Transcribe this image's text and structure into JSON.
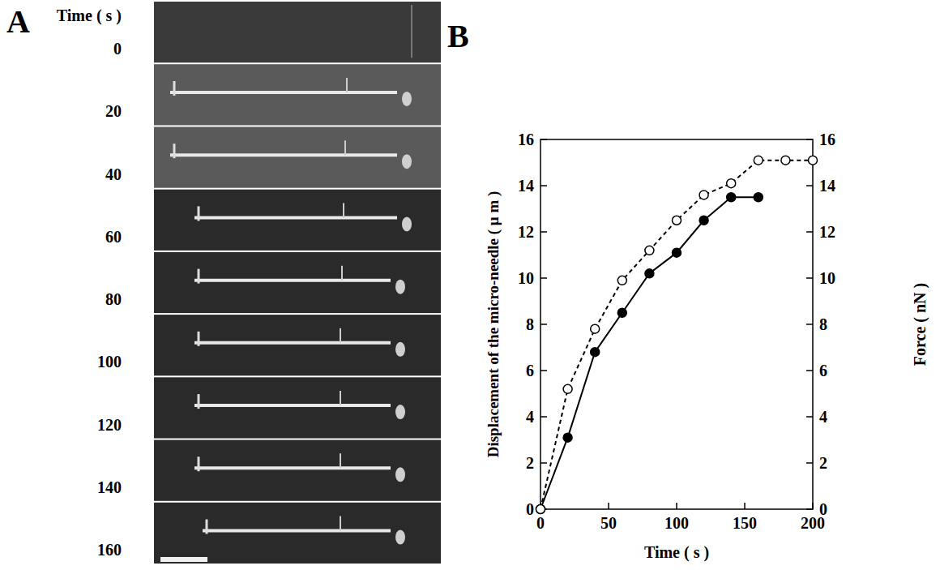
{
  "figure": {
    "panel_labels": [
      "A",
      "B"
    ]
  },
  "image_panel": {
    "header": "Time ( s )",
    "times": [
      0,
      20,
      40,
      60,
      80,
      100,
      120,
      140,
      160
    ]
  },
  "chart_data": {
    "type": "line",
    "x_label": "Time ( s )",
    "y_label": "Displacement of the micro-needle ( μ m )",
    "y2_label": "Force ( nN )",
    "xlim": [
      0,
      200
    ],
    "xticks": [
      0,
      50,
      100,
      150,
      200
    ],
    "ylim": [
      0,
      16
    ],
    "yticks": [
      0,
      2,
      4,
      6,
      8,
      10,
      12,
      14,
      16
    ],
    "y2lim": [
      0,
      16
    ],
    "y2ticks": [
      0,
      2,
      4,
      6,
      8,
      10,
      12,
      14,
      16
    ],
    "grid": false,
    "series": [
      {
        "color": "#000000",
        "marker": "filled-circle",
        "line_style": "solid",
        "x": [
          0,
          20,
          40,
          60,
          80,
          100,
          120,
          140,
          160
        ],
        "values": [
          0,
          3.1,
          6.8,
          8.5,
          10.2,
          11.1,
          12.5,
          13.5,
          13.5
        ]
      },
      {
        "color": "#000000",
        "marker": "open-circle",
        "line_style": "dashed",
        "axis": "y2",
        "x": [
          0,
          20,
          40,
          60,
          80,
          100,
          120,
          140,
          160,
          180,
          200
        ],
        "values": [
          0,
          5.2,
          7.8,
          9.9,
          11.2,
          12.5,
          13.6,
          14.1,
          15.1,
          15.1,
          15.1
        ]
      }
    ]
  }
}
